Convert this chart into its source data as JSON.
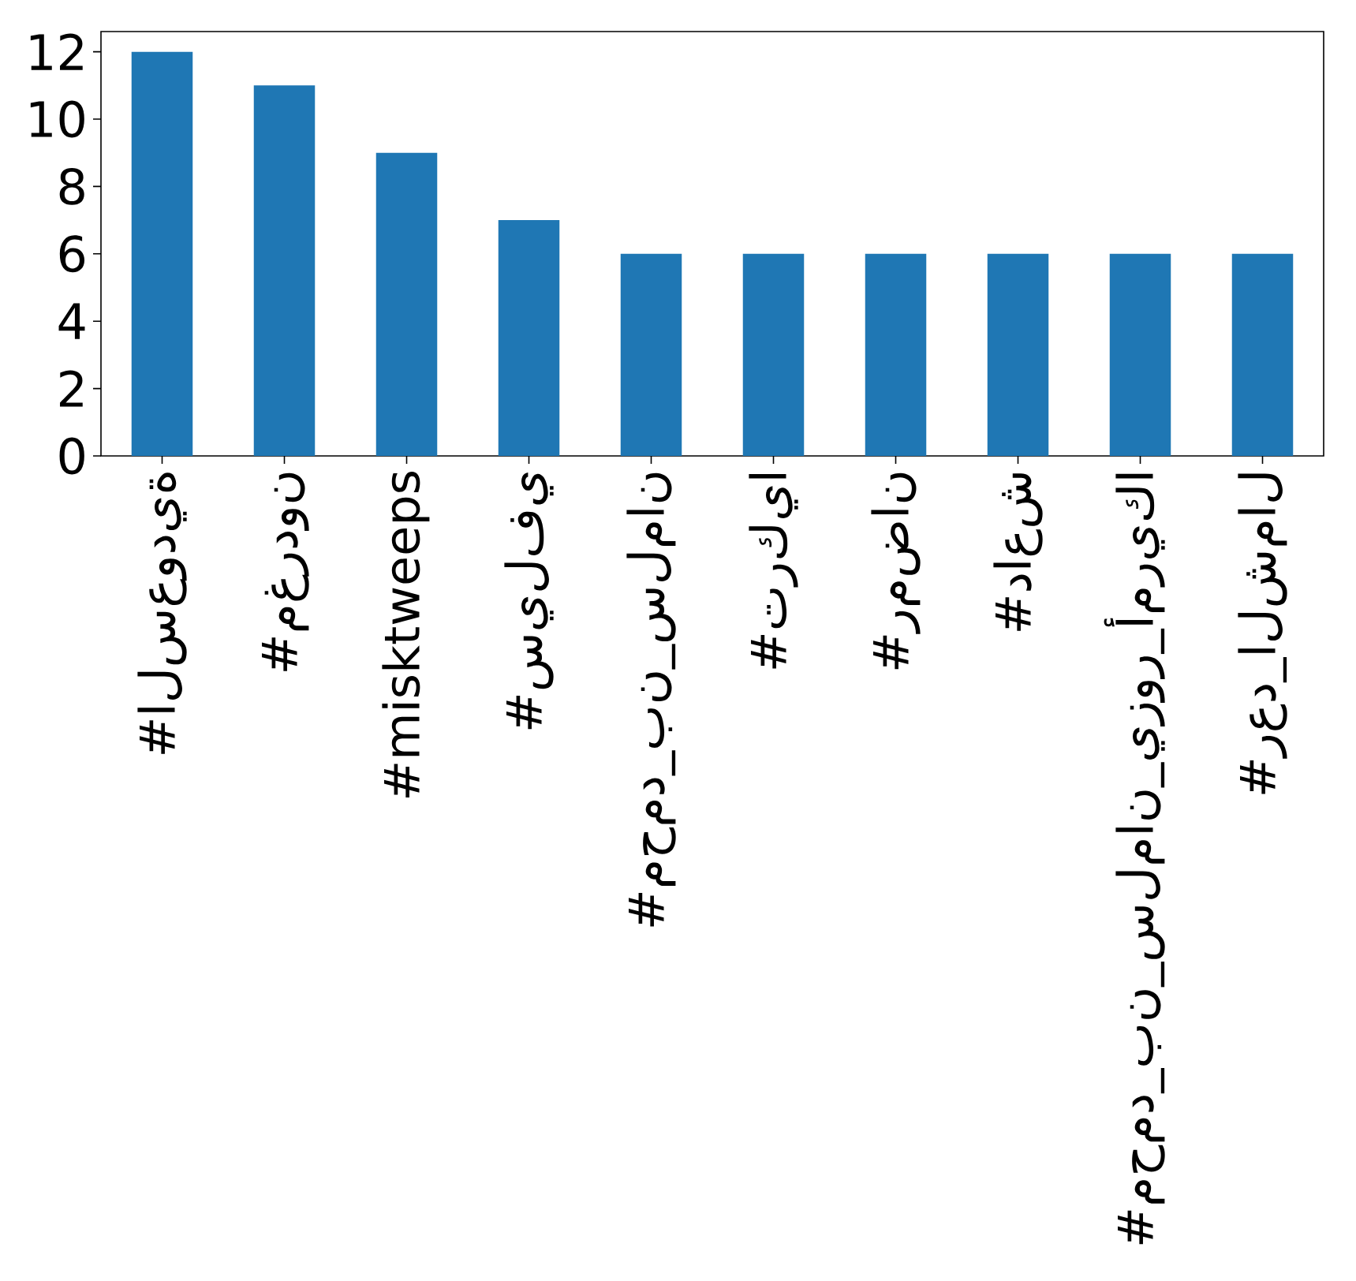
{
  "chart_data": {
    "type": "bar",
    "categories": [
      "#السعودية",
      "#مغردون",
      "#misktweeps",
      "#سيلفي",
      "#محمد_بن_سلمان",
      "#تركيا",
      "#رمضان",
      "#داعش",
      "#محمد_بن_سلمان_يزور_أمريكا",
      "#رعد_الشمال"
    ],
    "values": [
      12,
      11,
      9,
      7,
      6,
      6,
      6,
      6,
      6,
      6
    ],
    "color": "#1f77b4",
    "ylim": [
      0,
      12.6
    ],
    "yticks": [
      0,
      2,
      4,
      6,
      8,
      10,
      12
    ]
  }
}
